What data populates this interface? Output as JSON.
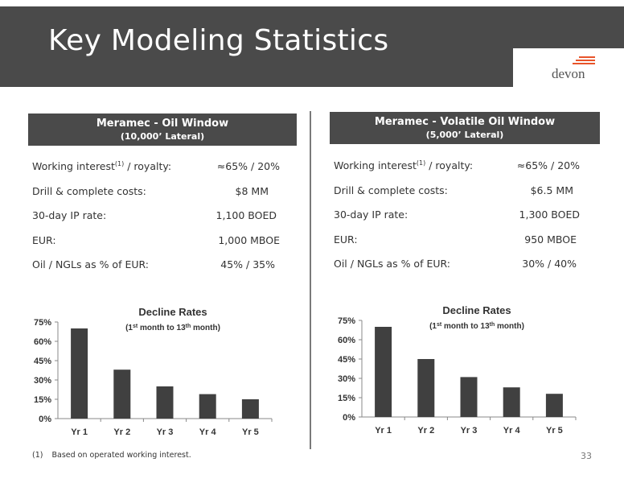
{
  "header": {
    "title": "Key Modeling Statistics",
    "logo_text": "devon",
    "banner_color": "#4a4a4a",
    "logo_accent_color": "#e8542a"
  },
  "panels": [
    {
      "heading": "Meramec - Oil Window",
      "subheading": "(10,000’ Lateral)",
      "stats": [
        {
          "label": "Working interest",
          "sup": "(1)",
          "label_suffix": " / royalty:",
          "value": "≈65% / 20%"
        },
        {
          "label": "Drill & complete costs:",
          "value": "$8 MM"
        },
        {
          "label": "30-day IP rate:",
          "value": "1,100 BOED"
        },
        {
          "label": "EUR:",
          "value": "1,000 MBOE"
        },
        {
          "label": "Oil / NGLs as % of EUR:",
          "value": "45% / 35%"
        }
      ]
    },
    {
      "heading": "Meramec - Volatile Oil Window",
      "subheading": "(5,000’ Lateral)",
      "stats": [
        {
          "label": "Working interest",
          "sup": "(1)",
          "label_suffix": " / royalty:",
          "value": "≈65% / 20%"
        },
        {
          "label": "Drill & complete costs:",
          "value": "$6.5 MM"
        },
        {
          "label": "30-day IP rate:",
          "value": "1,300 BOED"
        },
        {
          "label": "EUR:",
          "value": "950 MBOE"
        },
        {
          "label": "Oil / NGLs as % of EUR:",
          "value": "30% / 40%"
        }
      ]
    }
  ],
  "chart_data": [
    {
      "type": "bar",
      "title": "Decline Rates",
      "subtitle_parts": [
        "(1",
        "st",
        " month to 13",
        "th",
        " month)"
      ],
      "categories": [
        "Yr 1",
        "Yr 2",
        "Yr 3",
        "Yr 4",
        "Yr 5"
      ],
      "values": [
        70,
        38,
        25,
        19,
        15
      ],
      "ylim": [
        0,
        75
      ],
      "yticks": [
        "0%",
        "15%",
        "30%",
        "45%",
        "60%",
        "75%"
      ],
      "grid": false,
      "bar_color": "#404040"
    },
    {
      "type": "bar",
      "title": "Decline Rates",
      "subtitle_parts": [
        "(1",
        "st",
        " month to 13",
        "th",
        " month)"
      ],
      "categories": [
        "Yr 1",
        "Yr 2",
        "Yr 3",
        "Yr 4",
        "Yr 5"
      ],
      "values": [
        70,
        45,
        31,
        23,
        18
      ],
      "ylim": [
        0,
        75
      ],
      "yticks": [
        "0%",
        "15%",
        "30%",
        "45%",
        "60%",
        "75%"
      ],
      "grid": false,
      "bar_color": "#404040"
    }
  ],
  "footnote": {
    "number": "(1)",
    "text": "Based on operated working interest."
  },
  "page_number": "33"
}
